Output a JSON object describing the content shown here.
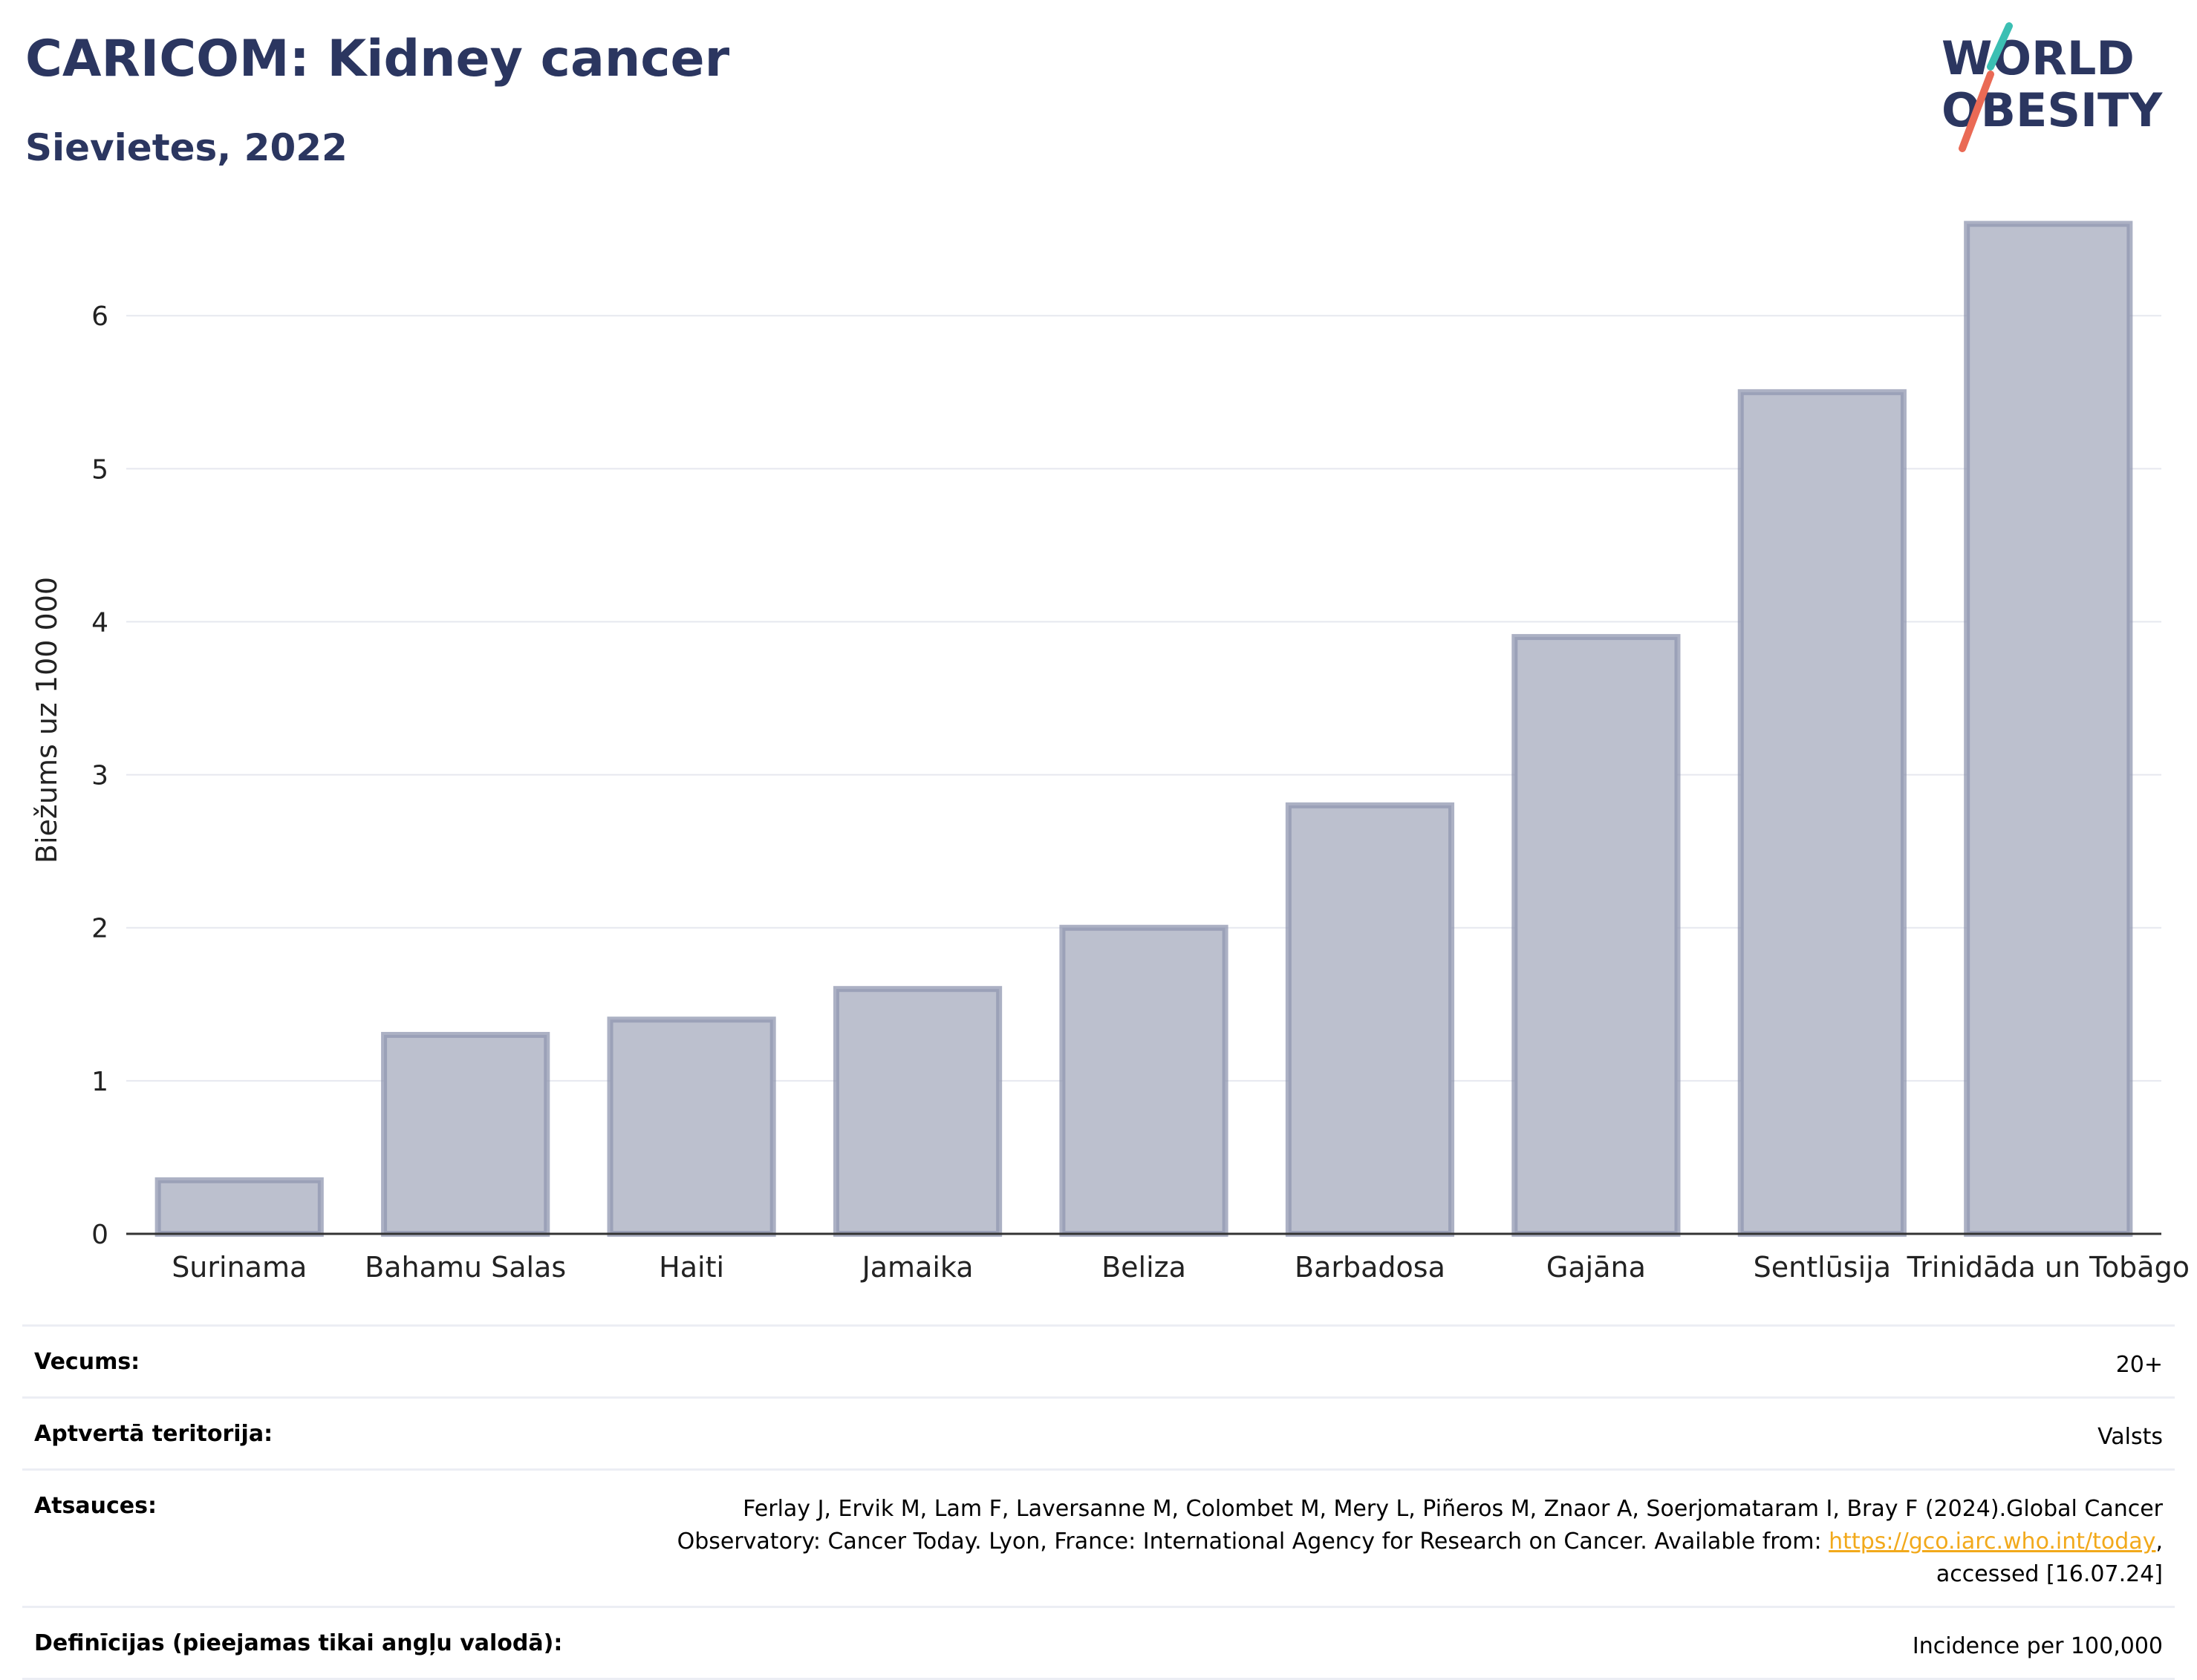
{
  "header": {
    "title": "CARICOM: Kidney cancer",
    "subtitle": "Sievietes, 2022",
    "logo_text": [
      "WORLD",
      "OBESITY"
    ]
  },
  "colors": {
    "title": "#2b3660",
    "bar_fill": "#bcc0ce",
    "bar_stroke": "#9097b0",
    "grid": "#e6e8ef",
    "axis": "#333333",
    "logo_navy": "#2b3660",
    "logo_teal": "#3bbfb3",
    "logo_coral": "#ea6a55",
    "link": "#f2a91b"
  },
  "chart_data": {
    "type": "bar",
    "title": "CARICOM: Kidney cancer",
    "subtitle": "Sievietes, 2022",
    "xlabel": "",
    "ylabel": "Biežums uz 100 000",
    "categories": [
      "Surinama",
      "Bahamu Salas",
      "Haiti",
      "Jamaika",
      "Beliza",
      "Barbadosa",
      "Gajāna",
      "Sentlūsija",
      "Trinidāda un Tobāgo"
    ],
    "values": [
      0.35,
      1.3,
      1.4,
      1.6,
      2.0,
      2.8,
      3.9,
      5.5,
      6.6
    ],
    "ylim": [
      0,
      6.85
    ],
    "yticks": [
      0,
      1,
      2,
      3,
      4,
      5,
      6
    ],
    "grid": true
  },
  "meta": {
    "age_label": "Vecums:",
    "age_value": "20+",
    "territory_label": "Aptvertā teritorija:",
    "territory_value": "Valsts",
    "refs_label": "Atsauces:",
    "refs_text_1": "Ferlay J, Ervik M, Lam F, Laversanne M, Colombet M, Mery L, Piñeros M, Znaor A, Soerjomataram I, Bray F (2024).Global Cancer Observatory: Cancer Today. Lyon, France: International Agency for Research on Cancer. Available from: ",
    "refs_link": "https://gco.iarc.who.int/today",
    "refs_text_2": ", accessed [16.07.24]",
    "defs_label": "Definīcijas (pieejamas tikai angļu valodā):",
    "defs_value": "Incidence per 100,000"
  }
}
